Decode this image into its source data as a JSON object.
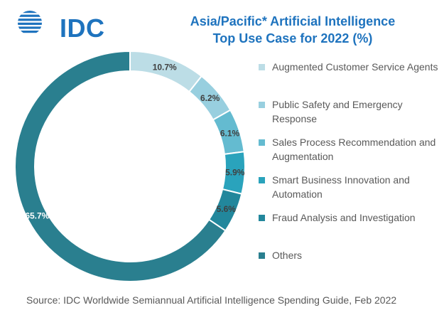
{
  "logo": {
    "text": "IDC",
    "color": "#1e73be"
  },
  "title": {
    "line1": "Asia/Pacific* Artificial Intelligence",
    "line2": "Top Use Case for 2022 (%)"
  },
  "source": "Source:  IDC Worldwide Semiannual Artificial Intelligence Spending Guide, Feb 2022",
  "chart_data": {
    "type": "pie",
    "subtype": "donut",
    "unit": "%",
    "legend_position": "right",
    "slices": [
      {
        "label": "Augmented Customer Service Agents",
        "value": 10.7,
        "display": "10.7%",
        "color": "#bcdde6"
      },
      {
        "label": "Public Safety and Emergency Response",
        "value": 6.2,
        "display": "6.2%",
        "color": "#98cfdf"
      },
      {
        "label": "Sales Process Recommendation and Augmentation",
        "value": 6.1,
        "display": "6.1%",
        "color": "#64bbd0"
      },
      {
        "label": "Smart Business Innovation and Automation",
        "value": 5.9,
        "display": "5.9%",
        "color": "#2aa3bc"
      },
      {
        "label": "Fraud Analysis and Investigation",
        "value": 5.6,
        "display": "5.6%",
        "color": "#22879c"
      },
      {
        "label": "Others",
        "value": 65.7,
        "display": "65.7%",
        "color": "#2a7f8f"
      }
    ]
  }
}
